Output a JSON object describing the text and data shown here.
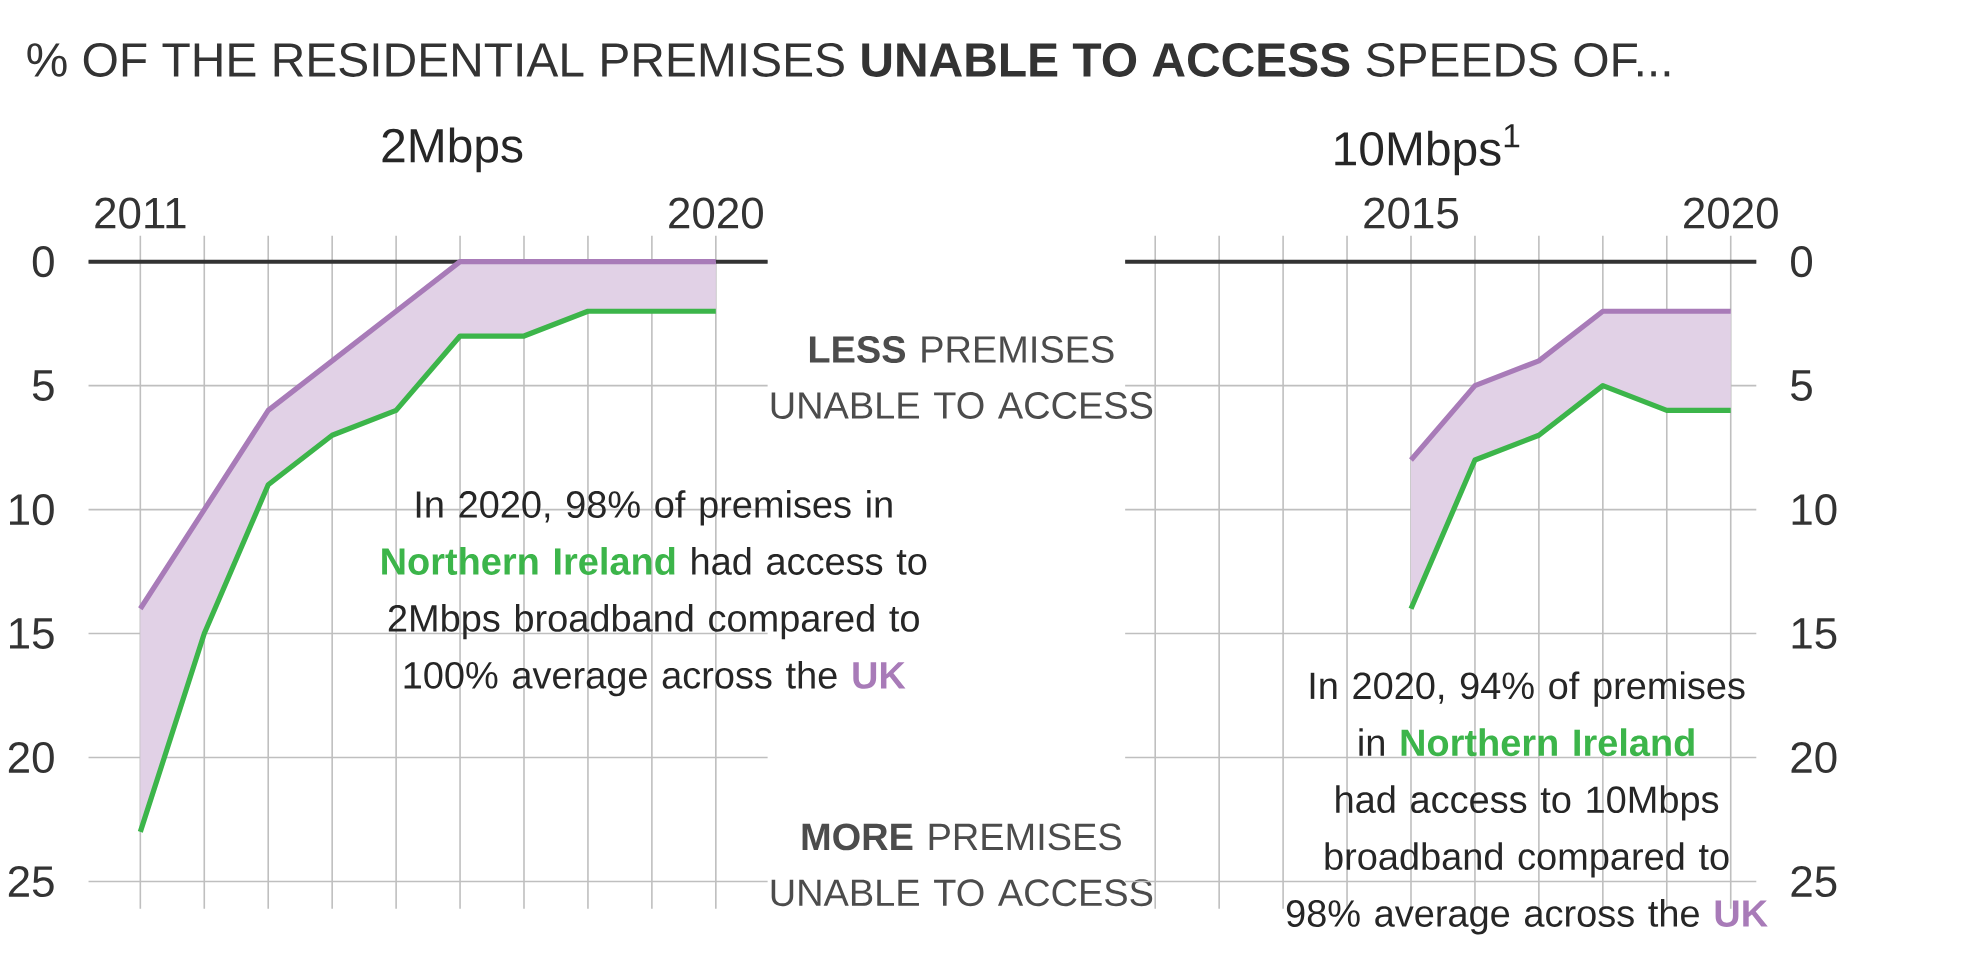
{
  "chart_data": [
    {
      "type": "line",
      "title": "% OF THE RESIDENTIAL PREMISES **UNABLE TO ACCESS** SPEEDS OF...",
      "subtitle": "2Mbps",
      "x": [
        2011,
        2012,
        2013,
        2014,
        2015,
        2016,
        2017,
        2018,
        2019,
        2020
      ],
      "series": [
        {
          "name": "Northern Ireland",
          "color": "#3cb54a",
          "values": [
            23,
            15,
            9,
            7,
            6,
            3,
            3,
            2,
            2,
            2
          ]
        },
        {
          "name": "UK",
          "color": "#a87bb8",
          "values": [
            14,
            10,
            6,
            4,
            2,
            0,
            0,
            0,
            0,
            0
          ],
          "lower": [
            14,
            10,
            6,
            4,
            2,
            0,
            0,
            0,
            0,
            0
          ],
          "upper": [
            23,
            15,
            9,
            7,
            6,
            3,
            3,
            2,
            2,
            2
          ]
        }
      ],
      "xlim": [
        2010.19,
        2020.81
      ],
      "ylim": [
        26.1,
        0
      ],
      "xticks": [
        2011,
        {
          "value": 2012,
          "label": null
        },
        {
          "value": 2013,
          "label": null
        },
        {
          "value": 2014,
          "label": null
        },
        {
          "value": 2015,
          "label": null
        },
        {
          "value": 2016,
          "label": null
        },
        {
          "value": 2017,
          "label": null
        },
        {
          "value": 2018,
          "label": null
        },
        {
          "value": 2019,
          "label": null
        },
        2020
      ],
      "yticks": [
        0,
        5,
        10,
        15,
        20,
        25
      ],
      "grid": true,
      "annotations": [
        "In 2020, 98% of premises in",
        "had access to 2Mbps broadband compared to 100% average across the",
        "**LESS** PREMISES UNABLE TO ACCESS",
        "**MORE** PREMISES UNABLE TO ACCESS"
      ]
    },
    {
      "type": "line",
      "title": "10Mbps$^{1}$",
      "x": [
        2015,
        2016,
        2017,
        2018,
        2019,
        2020
      ],
      "series": [
        {
          "name": "Northern Ireland",
          "color": "#3cb54a",
          "values": [
            14,
            8,
            7,
            5,
            6,
            6
          ]
        },
        {
          "name": "UK",
          "color": "#a87bb8",
          "values": [
            8,
            5,
            4,
            2,
            2,
            2
          ],
          "lower": [
            8,
            5,
            4,
            2,
            2,
            2
          ],
          "upper": [
            14,
            8,
            7,
            5,
            6,
            6
          ]
        }
      ],
      "xlim": [
        2010.53,
        2020.4
      ],
      "ylim": [
        26.1,
        0
      ],
      "xticks": [
        {
          "value": 2011,
          "label": null
        },
        {
          "value": 2012,
          "label": null
        },
        {
          "value": 2013,
          "label": null
        },
        {
          "value": 2014,
          "label": null
        },
        2015,
        {
          "value": 2016,
          "label": null
        },
        {
          "value": 2017,
          "label": null
        },
        {
          "value": 2018,
          "label": null
        },
        {
          "value": 2019,
          "label": null
        },
        2020
      ],
      "yticks": [
        0,
        5,
        10,
        15,
        20,
        25
      ],
      "grid": true,
      "annotations": [
        "In 2020, 94% of premises in",
        "had access to 10Mbps broadband compared to 98% average across the"
      ]
    }
  ]
}
